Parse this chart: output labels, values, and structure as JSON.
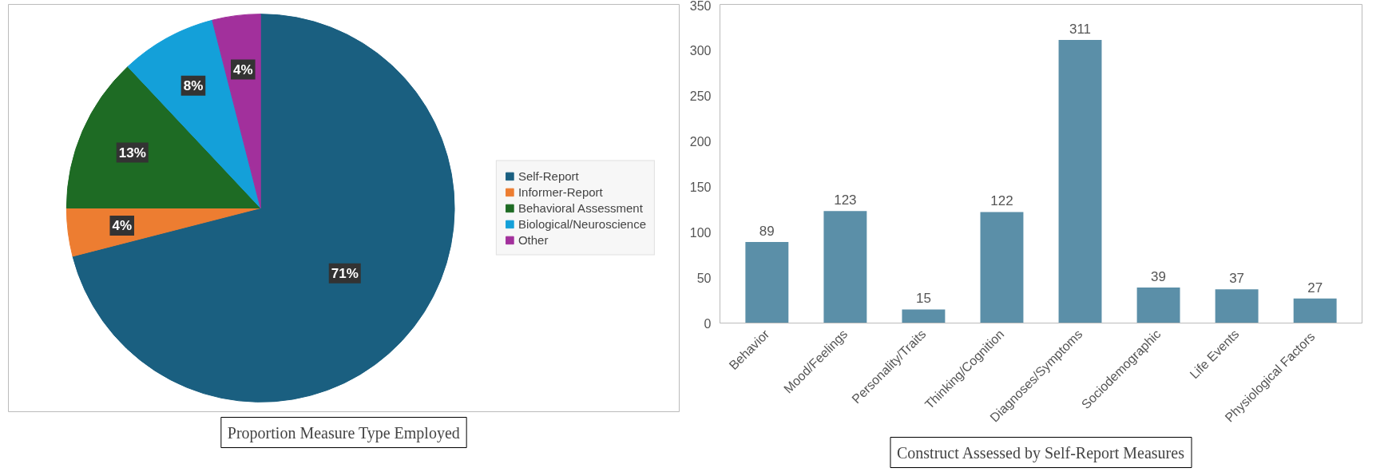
{
  "chart_data": [
    {
      "type": "pie",
      "title": "Proportion Measure Type Employed",
      "categories": [
        "Self-Report",
        "Informer-Report",
        "Behavioral Assessment",
        "Biological/Neuroscience",
        "Other"
      ],
      "values": [
        71,
        4,
        13,
        8,
        4
      ],
      "colors": [
        "#1a5f80",
        "#ed7d31",
        "#1e6b24",
        "#14a0d9",
        "#a2309c"
      ],
      "value_labels": [
        "71%",
        "4%",
        "13%",
        "8%",
        "4%"
      ],
      "legend": "right"
    },
    {
      "type": "bar",
      "title": "Construct Assessed by Self-Report Measures",
      "categories": [
        "Behavior",
        "Mood/Feelings",
        "Personality/Traits",
        "Thinking/Cognition",
        "Diagnoses/Symptoms",
        "Sociodemographic",
        "Life Events",
        "Physiological  Factors"
      ],
      "values": [
        89,
        123,
        15,
        122,
        311,
        39,
        37,
        27
      ],
      "color": "#5b8fa8",
      "ylim": [
        0,
        350
      ],
      "yticks": [
        0,
        50,
        100,
        150,
        200,
        250,
        300,
        350
      ],
      "data_labels": true,
      "grid": false
    }
  ]
}
